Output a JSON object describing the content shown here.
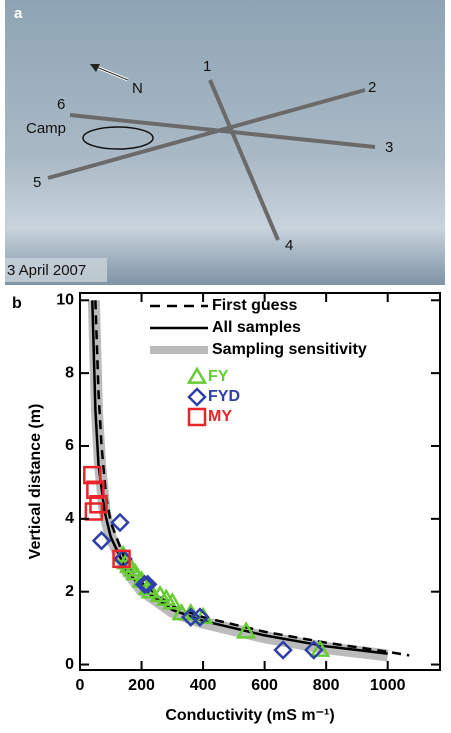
{
  "photo": {
    "label": "a",
    "north": "N",
    "lines": [
      "1",
      "2",
      "3",
      "4",
      "5",
      "6"
    ],
    "camp": "Camp",
    "date": "3 April 2007"
  },
  "chart_data": {
    "type": "scatter",
    "panel": "b",
    "x_label": "Conductivity (mS m⁻¹)",
    "y_label": "Vertical distance (m)",
    "xlim": [
      0,
      1170
    ],
    "ylim": [
      -0.15,
      10.2
    ],
    "xticks": [
      0,
      200,
      400,
      600,
      800,
      1000
    ],
    "yticks": [
      0,
      2,
      4,
      6,
      8,
      10
    ],
    "series": [
      {
        "name": "Sampling sensitivity",
        "color": "#bbbbbb",
        "style": "band",
        "x": [
          45,
          55,
          65,
          80,
          100,
          150,
          200,
          300,
          400,
          600,
          800,
          1000
        ],
        "values": [
          10,
          7,
          5.5,
          4.2,
          3.5,
          2.6,
          2.05,
          1.45,
          1.15,
          0.75,
          0.45,
          0.25
        ]
      },
      {
        "name": "First guess",
        "color": "#000000",
        "style": "dashed",
        "x": [
          50,
          60,
          70,
          85,
          100,
          150,
          200,
          300,
          400,
          600,
          800,
          1000,
          1070
        ],
        "values": [
          10,
          7.5,
          6,
          4.6,
          3.9,
          2.8,
          2.25,
          1.6,
          1.3,
          0.9,
          0.6,
          0.35,
          0.25
        ]
      },
      {
        "name": "All samples",
        "color": "#000000",
        "style": "solid",
        "x": [
          40,
          50,
          60,
          80,
          100,
          150,
          200,
          300,
          400,
          600,
          800,
          1000
        ],
        "values": [
          10,
          7,
          5.5,
          4.2,
          3.5,
          2.6,
          2.1,
          1.5,
          1.2,
          0.8,
          0.5,
          0.3
        ]
      },
      {
        "name": "FY",
        "color": "#66cc33",
        "marker": "triangle",
        "x": [
          140,
          150,
          160,
          170,
          180,
          200,
          220,
          230,
          260,
          280,
          300,
          330,
          360,
          400,
          540,
          780
        ],
        "values": [
          3.0,
          2.8,
          2.7,
          2.6,
          2.5,
          2.3,
          2.1,
          2.0,
          1.9,
          1.8,
          1.7,
          1.4,
          1.4,
          1.3,
          0.9,
          0.4
        ]
      },
      {
        "name": "FYD",
        "color": "#2e3fa8",
        "marker": "diamond",
        "x": [
          70,
          130,
          140,
          210,
          220,
          360,
          390,
          660,
          760
        ],
        "values": [
          3.4,
          3.9,
          2.9,
          2.2,
          2.2,
          1.3,
          1.3,
          0.4,
          0.4
        ]
      },
      {
        "name": "MY",
        "color": "#e8262a",
        "marker": "square",
        "x": [
          40,
          45,
          50,
          60,
          135
        ],
        "values": [
          5.2,
          4.2,
          4.8,
          4.4,
          2.9
        ]
      }
    ]
  }
}
